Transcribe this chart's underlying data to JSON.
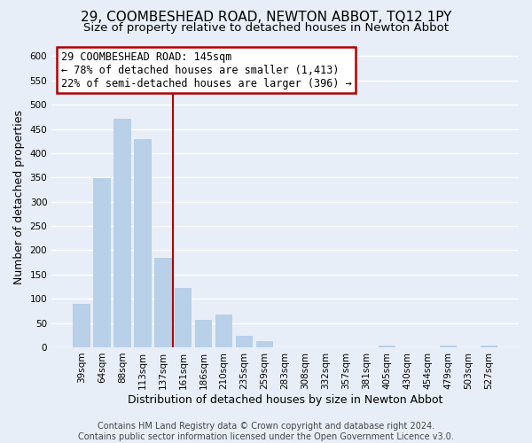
{
  "title": "29, COOMBESHEAD ROAD, NEWTON ABBOT, TQ12 1PY",
  "subtitle": "Size of property relative to detached houses in Newton Abbot",
  "xlabel": "Distribution of detached houses by size in Newton Abbot",
  "ylabel": "Number of detached properties",
  "bar_labels": [
    "39sqm",
    "64sqm",
    "88sqm",
    "113sqm",
    "137sqm",
    "161sqm",
    "186sqm",
    "210sqm",
    "235sqm",
    "259sqm",
    "283sqm",
    "308sqm",
    "332sqm",
    "357sqm",
    "381sqm",
    "405sqm",
    "430sqm",
    "454sqm",
    "479sqm",
    "503sqm",
    "527sqm"
  ],
  "bar_values": [
    90,
    348,
    472,
    430,
    185,
    122,
    57,
    67,
    24,
    12,
    0,
    0,
    0,
    0,
    0,
    3,
    0,
    0,
    3,
    0,
    3
  ],
  "bar_color": "#b8d0e8",
  "highlight_bar_index": -1,
  "highlight_color": "#b30000",
  "vline_x": 4,
  "ylim": [
    0,
    620
  ],
  "yticks": [
    0,
    50,
    100,
    150,
    200,
    250,
    300,
    350,
    400,
    450,
    500,
    550,
    600
  ],
  "annotation_title": "29 COOMBESHEAD ROAD: 145sqm",
  "annotation_line1": "← 78% of detached houses are smaller (1,413)",
  "annotation_line2": "22% of semi-detached houses are larger (396) →",
  "footer1": "Contains HM Land Registry data © Crown copyright and database right 2024.",
  "footer2": "Contains public sector information licensed under the Open Government Licence v3.0.",
  "background_color": "#e8eef8",
  "plot_background": "#e8eef8",
  "grid_color": "#ffffff",
  "title_fontsize": 11,
  "subtitle_fontsize": 9.5,
  "xlabel_fontsize": 9,
  "ylabel_fontsize": 9,
  "tick_fontsize": 7.5,
  "annotation_fontsize": 8.5,
  "footer_fontsize": 7
}
